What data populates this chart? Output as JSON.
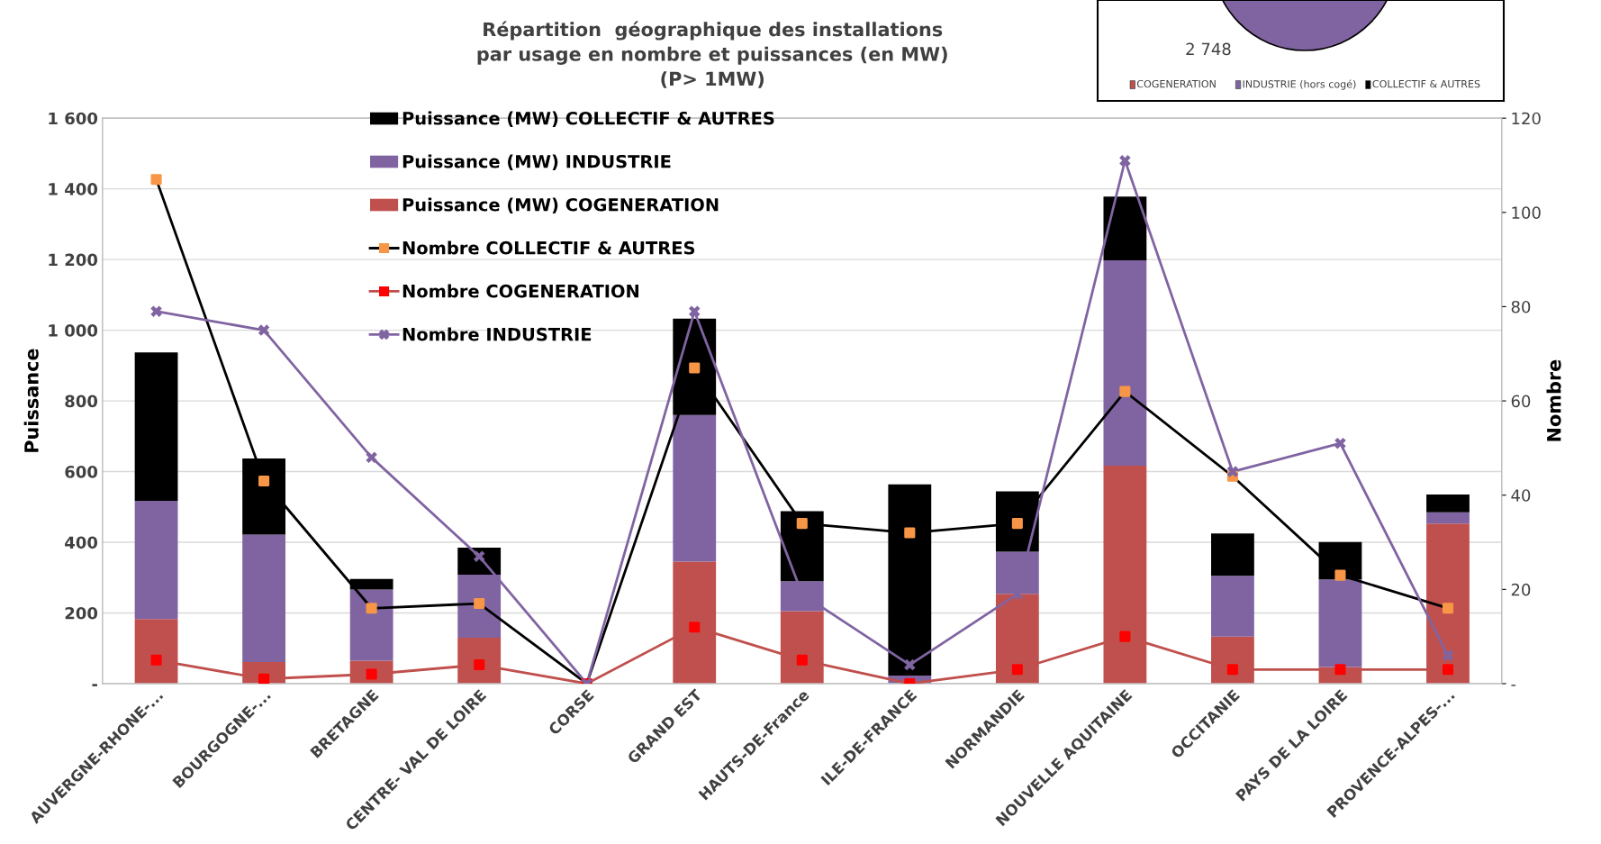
{
  "chart_data": [
    {
      "type": "bar",
      "stacked": true,
      "title": "Répartition  géographique des installations\npar usage en nombre et puissances (en MW)\n(P> 1MW)",
      "ylabel": "Puissance",
      "y2label": "Nombre",
      "categories": [
        "AUVERGNE-RHONE-...",
        "BOURGOGNE-...",
        "BRETAGNE",
        "CENTRE- VAL DE LOIRE",
        "CORSE",
        "GRAND EST",
        "HAUTS-DE-France",
        "ILE-DE-FRANCE",
        "NORMANDIE",
        "NOUVELLE AQUITAINE",
        "OCCITANIE",
        "PAYS DE LA LOIRE",
        "PROVENCE-ALPES-..."
      ],
      "ylim": [
        0,
        1600
      ],
      "yticks": [
        {
          "value": 0,
          "label": "-"
        },
        {
          "value": 200,
          "label": "200"
        },
        {
          "value": 400,
          "label": "400"
        },
        {
          "value": 600,
          "label": "600"
        },
        {
          "value": 800,
          "label": "800"
        },
        {
          "value": 1000,
          "label": "1 000"
        },
        {
          "value": 1200,
          "label": "1 200"
        },
        {
          "value": 1400,
          "label": "1 400"
        },
        {
          "value": 1600,
          "label": "1 600"
        }
      ],
      "y2lim": [
        0,
        120
      ],
      "y2ticks": [
        {
          "value": 0,
          "label": "-"
        },
        20,
        40,
        60,
        80,
        100,
        120
      ],
      "grid": "y",
      "legend": "top left",
      "series": [
        {
          "name": "Puissance (MW) COGENERATION",
          "color": "#c0504d",
          "values": [
            183,
            61,
            65,
            130,
            0,
            345,
            205,
            0,
            254,
            617,
            133,
            47,
            453
          ]
        },
        {
          "name": "Puissance (MW) INDUSTRIE",
          "color": "#8064a2",
          "values": [
            334,
            361,
            201,
            178,
            0,
            415,
            85,
            23,
            119,
            581,
            172,
            248,
            32
          ]
        },
        {
          "name": "Puissance (MW) COLLECTIF & AUTRES",
          "color": "#000000",
          "values": [
            420,
            215,
            30,
            77,
            0,
            273,
            198,
            541,
            171,
            180,
            120,
            106,
            50
          ]
        },
        {
          "name": "Nombre COLLECTIF & AUTRES",
          "type": "line",
          "axis": "y2",
          "color": "#000000",
          "colors": [
            "#f79646",
            "#f79646",
            "#f79646",
            "#f79646",
            "#f79646",
            "#f79646",
            "#f79646",
            "#f79646",
            "#f79646",
            "#f79646",
            "#f79646",
            "#f79646",
            "#f79646"
          ],
          "marker": "square",
          "values": [
            107,
            43,
            16,
            17,
            0,
            67,
            34,
            32,
            34,
            62,
            44,
            23,
            16
          ]
        },
        {
          "name": "Nombre COGENERATION",
          "type": "line",
          "axis": "y2",
          "color": "#c0504d",
          "colors": [
            "#ff0000",
            "#ff0000",
            "#ff0000",
            "#ff0000",
            "#ff0000",
            "#ff0000",
            "#ff0000",
            "#ff0000",
            "#ff0000",
            "#ff0000",
            "#ff0000",
            "#ff0000",
            "#ff0000"
          ],
          "marker": "square",
          "values": [
            5,
            1,
            2,
            4,
            0,
            12,
            5,
            0,
            3,
            10,
            3,
            3,
            3
          ]
        },
        {
          "name": "Nombre INDUSTRIE",
          "type": "line",
          "axis": "y2",
          "color": "#8064a2",
          "marker": "cross",
          "values": [
            79,
            75,
            48,
            27,
            0,
            79,
            19,
            4,
            19,
            111,
            45,
            51,
            6
          ]
        }
      ]
    },
    {
      "type": "other",
      "categories": [
        "COGENERATION",
        "INDUSTRIE (hors cogé)",
        "COLLECTIF & AUTRES"
      ],
      "colors": [
        "#c0504d",
        "#8064a2",
        "#000000"
      ],
      "annotations": [
        "2 748"
      ]
    }
  ]
}
